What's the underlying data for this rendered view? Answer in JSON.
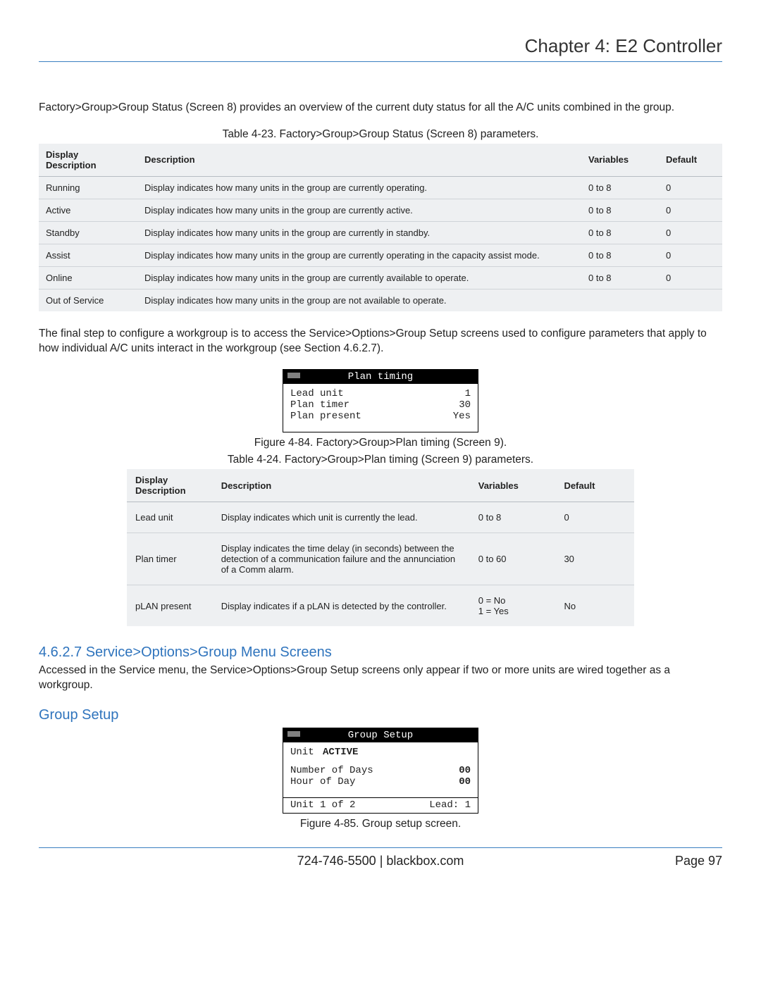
{
  "header": {
    "chapter_title": "Chapter 4: E2 Controller"
  },
  "intro1": "Factory>Group>Group Status (Screen 8) provides an overview of the current duty status for all the A/C units combined in the group.",
  "table23": {
    "caption": "Table 4-23. Factory>Group>Group Status (Screen 8) parameters.",
    "columns": [
      "Display Description",
      "Description",
      "Variables",
      "Default"
    ],
    "rows": [
      [
        "Running",
        "Display indicates how many units in the group are currently operating.",
        "0 to 8",
        "0"
      ],
      [
        "Active",
        "Display indicates how many units in the group are currently active.",
        "0 to 8",
        "0"
      ],
      [
        "Standby",
        "Display indicates how many units in the group are currently in standby.",
        "0 to 8",
        "0"
      ],
      [
        "Assist",
        "Display indicates how many units in the group are currently operating in the capacity assist mode.",
        "0 to 8",
        "0"
      ],
      [
        "Online",
        "Display indicates how many units in the group are currently available to operate.",
        "0 to 8",
        "0"
      ],
      [
        "Out of Service",
        "Display indicates how many units in the group are not available to operate.",
        "",
        ""
      ]
    ]
  },
  "intro2": "The final step to configure a workgroup is to access the Service>Options>Group Setup screens used to configure parameters that apply to how individual A/C units interact in the workgroup (see Section 4.6.2.7).",
  "screen9": {
    "title": "Plan timing",
    "rows": [
      {
        "label": "Lead unit",
        "value": "1"
      },
      {
        "label": "Plan timer",
        "value": "30"
      },
      {
        "label": "",
        "value": ""
      },
      {
        "label": "Plan present",
        "value": "Yes"
      }
    ]
  },
  "fig84_caption": "Figure 4-84. Factory>Group>Plan timing (Screen 9).",
  "table24": {
    "caption": "Table 4-24. Factory>Group>Plan timing (Screen 9) parameters.",
    "columns": [
      "Display Description",
      "Description",
      "Variables",
      "Default"
    ],
    "rows": [
      [
        "Lead unit",
        "Display indicates which unit is currently the lead.",
        "0 to 8",
        "0"
      ],
      [
        "Plan timer",
        "Display indicates the time delay (in seconds) between the detection of a communication failure and the annunciation of a Comm alarm.",
        "0 to 60",
        "30"
      ],
      [
        "pLAN present",
        "Display indicates if a pLAN is detected by the controller.",
        "0 = No\n1 = Yes",
        "No"
      ]
    ]
  },
  "section_4627": {
    "heading": "4.6.2.7 Service>Options>Group Menu Screens",
    "para": "Accessed in the Service menu, the Service>Options>Group Setup screens only appear if two or more units are wired together as a workgroup."
  },
  "group_setup": {
    "heading": "Group Setup",
    "screen": {
      "title": "Group Setup",
      "status_label": "Unit",
      "status_value": "ACTIVE",
      "rows": [
        {
          "label": "Number of Days",
          "value": "00"
        },
        {
          "label": "Hour of Day",
          "value": "00"
        }
      ],
      "foot_left": "Unit 1 of 2",
      "foot_right": "Lead: 1"
    },
    "caption": "Figure 4-85. Group setup screen."
  },
  "footer": {
    "phone": "724-746-5500",
    "sep": " | ",
    "site": "blackbox.com",
    "page": "Page 97"
  }
}
